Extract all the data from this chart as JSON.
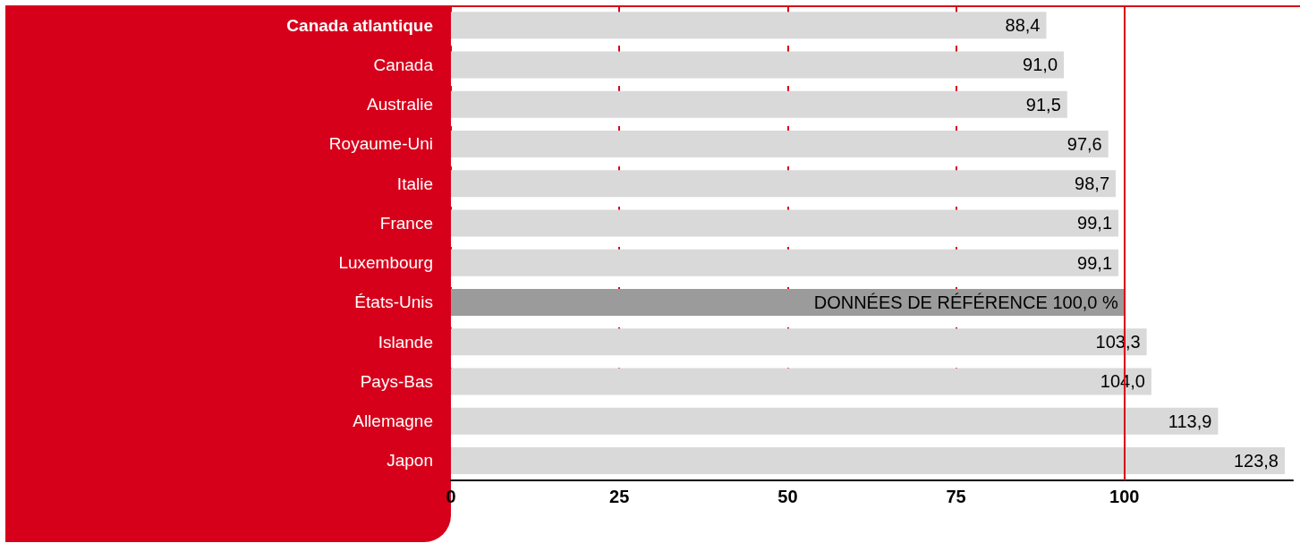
{
  "chart_data": {
    "type": "bar",
    "orientation": "horizontal",
    "categories": [
      "Canada atlantique",
      "Canada",
      "Australie",
      "Royaume-Uni",
      "Italie",
      "France",
      "Luxembourg",
      "États-Unis",
      "Islande",
      "Pays-Bas",
      "Allemagne",
      "Japon"
    ],
    "values": [
      88.4,
      91.0,
      91.5,
      97.6,
      98.7,
      99.1,
      99.1,
      100.0,
      103.3,
      104.0,
      113.9,
      123.8
    ],
    "colors": [
      "#d9d9d9",
      "#d9d9d9",
      "#d9d9d9",
      "#d9d9d9",
      "#d9d9d9",
      "#d9d9d9",
      "#d9d9d9",
      "#9b9b9b",
      "#d9d9d9",
      "#d9d9d9",
      "#d9d9d9",
      "#d9d9d9"
    ],
    "value_labels": [
      "88,4",
      "91,0",
      "91,5",
      "97,6",
      "98,7",
      "99,1",
      "99,1",
      "DONNÉES DE RÉFÉRENCE 100,0 %",
      "103,3",
      "104,0",
      "113,9",
      "123,8"
    ],
    "xlim": [
      0,
      125
    ],
    "xticks": [
      0,
      25,
      50,
      75,
      100
    ],
    "ref_lines": [
      {
        "axis": "x",
        "value": 100,
        "color": "#d7001b",
        "line_style": "solid"
      }
    ],
    "grid": "x"
  }
}
